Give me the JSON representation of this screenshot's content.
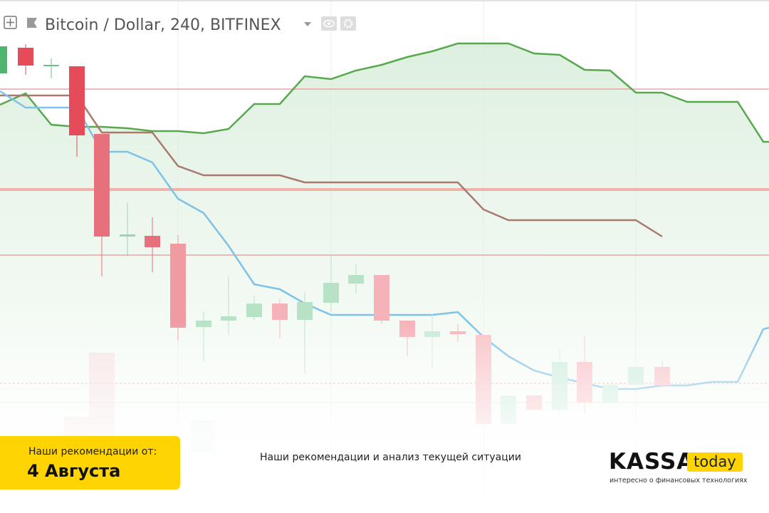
{
  "header": {
    "title": "Bitcoin / Dollar, 240, BITFINEX"
  },
  "banner": {
    "label": "Наши рекомендации от:",
    "date": "4 Августа"
  },
  "caption": "Наши рекомендации и анализ текущей ситуации",
  "logo": {
    "name": "KASSA",
    "badge": "today",
    "tagline": "интересно о финансовых технологиях"
  }
}
